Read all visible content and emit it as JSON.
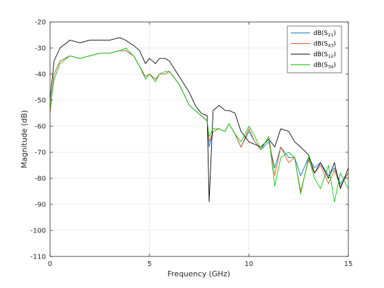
{
  "chart_data": {
    "type": "line",
    "title": "",
    "xlabel": "Frequency (GHz)",
    "ylabel": "Magnitude (dB)",
    "xlim": [
      0,
      15
    ],
    "ylim": [
      -110,
      -20
    ],
    "xticks": [
      0,
      5,
      10,
      15
    ],
    "yticks": [
      -110,
      -100,
      -90,
      -80,
      -70,
      -60,
      -50,
      -40,
      -30,
      -20
    ],
    "grid": true,
    "legend_position": "top-right",
    "series": [
      {
        "name": "dB(S21)",
        "legend": {
          "base": "dB(S",
          "sub": "21",
          "suffix": ")"
        },
        "color": "#0072bd",
        "x": [
          0,
          0.2,
          0.5,
          1.0,
          1.5,
          2.0,
          2.5,
          3.0,
          3.5,
          3.8,
          4.2,
          4.5,
          4.8,
          5.0,
          5.3,
          5.5,
          5.8,
          6.0,
          6.5,
          7.0,
          7.3,
          7.6,
          7.9,
          8.0,
          8.2,
          8.5,
          8.8,
          9.0,
          9.3,
          9.6,
          10.0,
          10.3,
          10.6,
          11.0,
          11.3,
          11.6,
          12.0,
          12.3,
          12.6,
          13.0,
          13.3,
          13.6,
          14.0,
          14.3,
          14.6,
          15.0
        ],
        "y": [
          -55,
          -40,
          -35,
          -33,
          -34,
          -33,
          -32,
          -32,
          -31,
          -31,
          -33,
          -37,
          -41,
          -40,
          -42,
          -40,
          -40,
          -39,
          -44,
          -52,
          -54,
          -56,
          -58,
          -68,
          -62,
          -61,
          -62,
          -59,
          -63,
          -68,
          -62,
          -66,
          -69,
          -66,
          -76,
          -68,
          -72,
          -72,
          -79,
          -72,
          -76,
          -74,
          -79,
          -76,
          -82,
          -78
        ]
      },
      {
        "name": "dB(S43)",
        "legend": {
          "base": "dB(S",
          "sub": "43",
          "suffix": ")"
        },
        "color": "#d95319",
        "x": [
          0,
          0.2,
          0.5,
          1.0,
          1.5,
          2.0,
          2.5,
          3.0,
          3.5,
          3.8,
          4.2,
          4.5,
          4.8,
          5.0,
          5.3,
          5.5,
          5.8,
          6.0,
          6.5,
          7.0,
          7.3,
          7.6,
          7.9,
          8.0,
          8.2,
          8.5,
          8.8,
          9.0,
          9.3,
          9.6,
          10.0,
          10.3,
          10.6,
          11.0,
          11.3,
          11.6,
          12.0,
          12.3,
          12.6,
          13.0,
          13.3,
          13.6,
          14.0,
          14.3,
          14.6,
          15.0
        ],
        "y": [
          -55,
          -40,
          -35,
          -33,
          -34,
          -33,
          -32,
          -32,
          -31,
          -31,
          -33,
          -37,
          -41,
          -40,
          -42,
          -40,
          -40,
          -39,
          -44,
          -52,
          -54,
          -56,
          -58,
          -66,
          -62,
          -61,
          -62,
          -59,
          -63,
          -68,
          -61,
          -66,
          -69,
          -64,
          -79,
          -68,
          -74,
          -72,
          -85,
          -73,
          -78,
          -75,
          -82,
          -77,
          -83,
          -78
        ]
      },
      {
        "name": "dB(S12)",
        "legend": {
          "base": "dB(S",
          "sub": "12",
          "suffix": ")"
        },
        "color": "#000000",
        "x": [
          0,
          0.2,
          0.5,
          1.0,
          1.5,
          2.0,
          2.5,
          3.0,
          3.5,
          3.8,
          4.2,
          4.5,
          4.8,
          5.0,
          5.3,
          5.5,
          5.8,
          6.0,
          6.5,
          7.0,
          7.3,
          7.6,
          7.9,
          8.0,
          8.2,
          8.5,
          8.8,
          9.0,
          9.3,
          9.6,
          10.0,
          10.3,
          10.6,
          11.0,
          11.3,
          11.6,
          12.0,
          12.3,
          12.6,
          13.0,
          13.3,
          13.6,
          14.0,
          14.3,
          14.6,
          15.0
        ],
        "y": [
          -50,
          -35,
          -30,
          -27,
          -28,
          -27,
          -27,
          -27,
          -26,
          -27,
          -29,
          -31,
          -36,
          -34,
          -36,
          -34,
          -34,
          -35,
          -41,
          -47,
          -52,
          -55,
          -56,
          -89,
          -54,
          -52,
          -54,
          -54,
          -55,
          -62,
          -66,
          -67,
          -68,
          -65,
          -68,
          -61,
          -62,
          -66,
          -68,
          -71,
          -78,
          -74,
          -80,
          -74,
          -84,
          -76
        ]
      },
      {
        "name": "dB(S34)",
        "legend": {
          "base": "dB(S",
          "sub": "34",
          "suffix": ")"
        },
        "color": "#00cc00",
        "x": [
          0,
          0.2,
          0.5,
          1.0,
          1.5,
          2.0,
          2.5,
          3.0,
          3.5,
          3.8,
          4.2,
          4.5,
          4.8,
          5.0,
          5.3,
          5.5,
          5.8,
          6.0,
          6.5,
          7.0,
          7.3,
          7.6,
          7.9,
          8.0,
          8.2,
          8.5,
          8.8,
          9.0,
          9.3,
          9.6,
          10.0,
          10.3,
          10.6,
          11.0,
          11.3,
          11.6,
          12.0,
          12.3,
          12.6,
          13.0,
          13.3,
          13.6,
          14.0,
          14.3,
          14.6,
          15.0
        ],
        "y": [
          -53,
          -42,
          -36,
          -33,
          -34,
          -33,
          -32,
          -32,
          -31,
          -30,
          -33,
          -37,
          -42,
          -40,
          -43,
          -40,
          -39,
          -39,
          -44,
          -52,
          -54,
          -56,
          -58,
          -64,
          -61,
          -61,
          -62,
          -59,
          -63,
          -66,
          -60,
          -64,
          -69,
          -64,
          -83,
          -72,
          -70,
          -72,
          -86,
          -72,
          -80,
          -84,
          -75,
          -89,
          -78,
          -84
        ]
      }
    ]
  }
}
